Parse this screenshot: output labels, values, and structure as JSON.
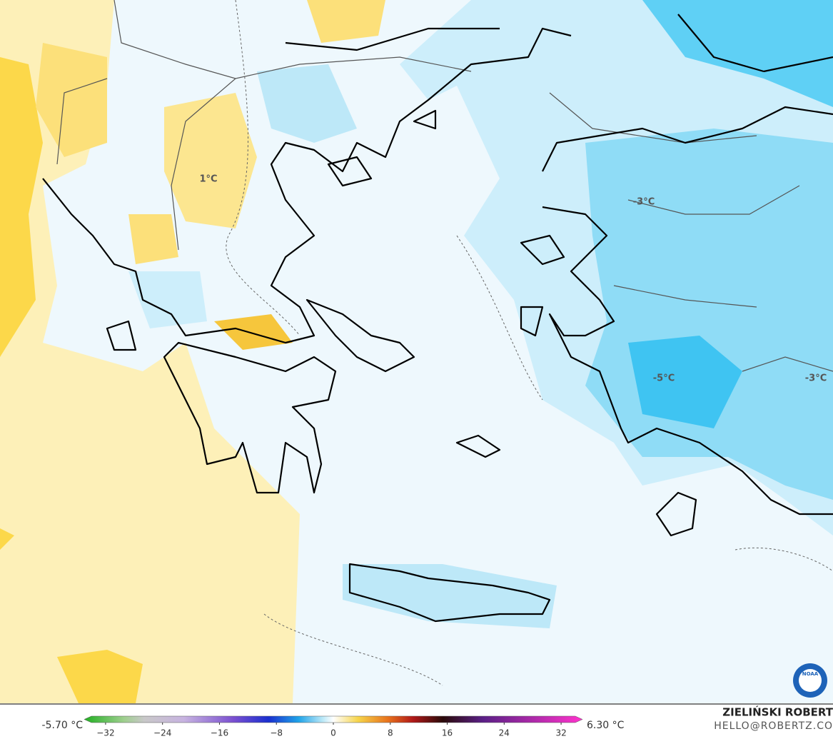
{
  "map": {
    "contour_labels": [
      "1°C",
      "-3°C",
      "-5°C",
      "-3°C"
    ]
  },
  "colorbar": {
    "min_label": "-5.70 °C",
    "max_label": "6.30 °C",
    "xlim": [
      -35,
      35
    ],
    "ticks": [
      {
        "value": -32,
        "label": "−32"
      },
      {
        "value": -24,
        "label": "−24"
      },
      {
        "value": -16,
        "label": "−16"
      },
      {
        "value": -8,
        "label": "−8"
      },
      0,
      8,
      16,
      24,
      32
    ]
  },
  "credit": {
    "author": "ZIELIŃSKI ROBERT",
    "email": "HELLO@ROBERTZ.CO",
    "logo": "NOAA"
  }
}
